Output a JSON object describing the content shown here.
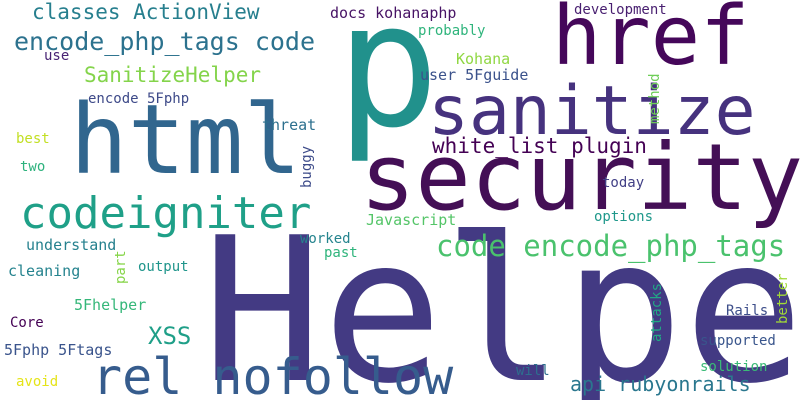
{
  "words": [
    {
      "id": "helper",
      "text": "Helper",
      "color": "#433a83"
    },
    {
      "id": "p",
      "text": "p",
      "color": "#21918c"
    },
    {
      "id": "security",
      "text": "security",
      "color": "#440f56"
    },
    {
      "id": "html",
      "text": "html",
      "color": "#31668e"
    },
    {
      "id": "href",
      "text": "href",
      "color": "#45075a"
    },
    {
      "id": "sanitize",
      "text": "sanitize",
      "color": "#46327e"
    },
    {
      "id": "rel-nofollow",
      "text": "rel nofollow",
      "color": "#365c8d"
    },
    {
      "id": "codeigniter",
      "text": "codeigniter",
      "color": "#1fa088"
    },
    {
      "id": "code-encode-php-tags",
      "text": "code encode_php_tags",
      "color": "#4ac26d"
    },
    {
      "id": "encode-php-tags-code",
      "text": "encode_php_tags code",
      "color": "#2c728e"
    },
    {
      "id": "white-list-plugin",
      "text": "white_list plugin",
      "color": "#440154"
    },
    {
      "id": "classes-actionview",
      "text": "classes ActionView",
      "color": "#277f8e"
    },
    {
      "id": "sanitizehelper",
      "text": "SanitizeHelper",
      "color": "#84d44b"
    },
    {
      "id": "api-rubyonrails",
      "text": "api rubyonrails",
      "color": "#2a778e"
    },
    {
      "id": "xss",
      "text": "XSS",
      "color": "#1f9f88"
    },
    {
      "id": "docs-kohanaphp",
      "text": "docs kohanaphp",
      "color": "#471365"
    },
    {
      "id": "development",
      "text": "development",
      "color": "#481f70"
    },
    {
      "id": "probably",
      "text": "probably",
      "color": "#2fb47c"
    },
    {
      "id": "kohana",
      "text": "Kohana",
      "color": "#90d743"
    },
    {
      "id": "user-5fguide",
      "text": "user 5Fguide",
      "color": "#3b528b"
    },
    {
      "id": "use",
      "text": "use",
      "color": "#482374"
    },
    {
      "id": "encode-5fphp",
      "text": "encode 5Fphp",
      "color": "#3e4a89"
    },
    {
      "id": "threat",
      "text": "threat",
      "color": "#2d708e"
    },
    {
      "id": "method",
      "text": "method",
      "color": "#6ece58"
    },
    {
      "id": "best",
      "text": "best",
      "color": "#c2df23"
    },
    {
      "id": "two",
      "text": "two",
      "color": "#2db27d"
    },
    {
      "id": "buggy",
      "text": "buggy",
      "color": "#3e4c8a"
    },
    {
      "id": "today",
      "text": "today",
      "color": "#424086"
    },
    {
      "id": "javascript",
      "text": "Javascript",
      "color": "#54c568"
    },
    {
      "id": "options",
      "text": "options",
      "color": "#1f988b"
    },
    {
      "id": "understand",
      "text": "understand",
      "color": "#26818e"
    },
    {
      "id": "worked",
      "text": "worked",
      "color": "#25848e"
    },
    {
      "id": "past",
      "text": "past",
      "color": "#2fb47c"
    },
    {
      "id": "cleaning",
      "text": "cleaning",
      "color": "#25838e"
    },
    {
      "id": "part",
      "text": "part",
      "color": "#86d549"
    },
    {
      "id": "output",
      "text": "output",
      "color": "#1f958b"
    },
    {
      "id": "5fhelper",
      "text": "5Fhelper",
      "color": "#35b779"
    },
    {
      "id": "core",
      "text": "Core",
      "color": "#440154"
    },
    {
      "id": "attacks",
      "text": "attacks",
      "color": "#22a785"
    },
    {
      "id": "rails",
      "text": "Rails",
      "color": "#3d4e8a"
    },
    {
      "id": "better",
      "text": "better",
      "color": "#a2da37"
    },
    {
      "id": "supported",
      "text": "supported",
      "color": "#39558c"
    },
    {
      "id": "5fphp-5ftags",
      "text": "5Fphp 5Ftags",
      "color": "#3a548c"
    },
    {
      "id": "solution",
      "text": "solution",
      "color": "#3aba76"
    },
    {
      "id": "will",
      "text": "will",
      "color": "#2e6f8e"
    },
    {
      "id": "avoid",
      "text": "avoid",
      "color": "#e5e419"
    }
  ]
}
